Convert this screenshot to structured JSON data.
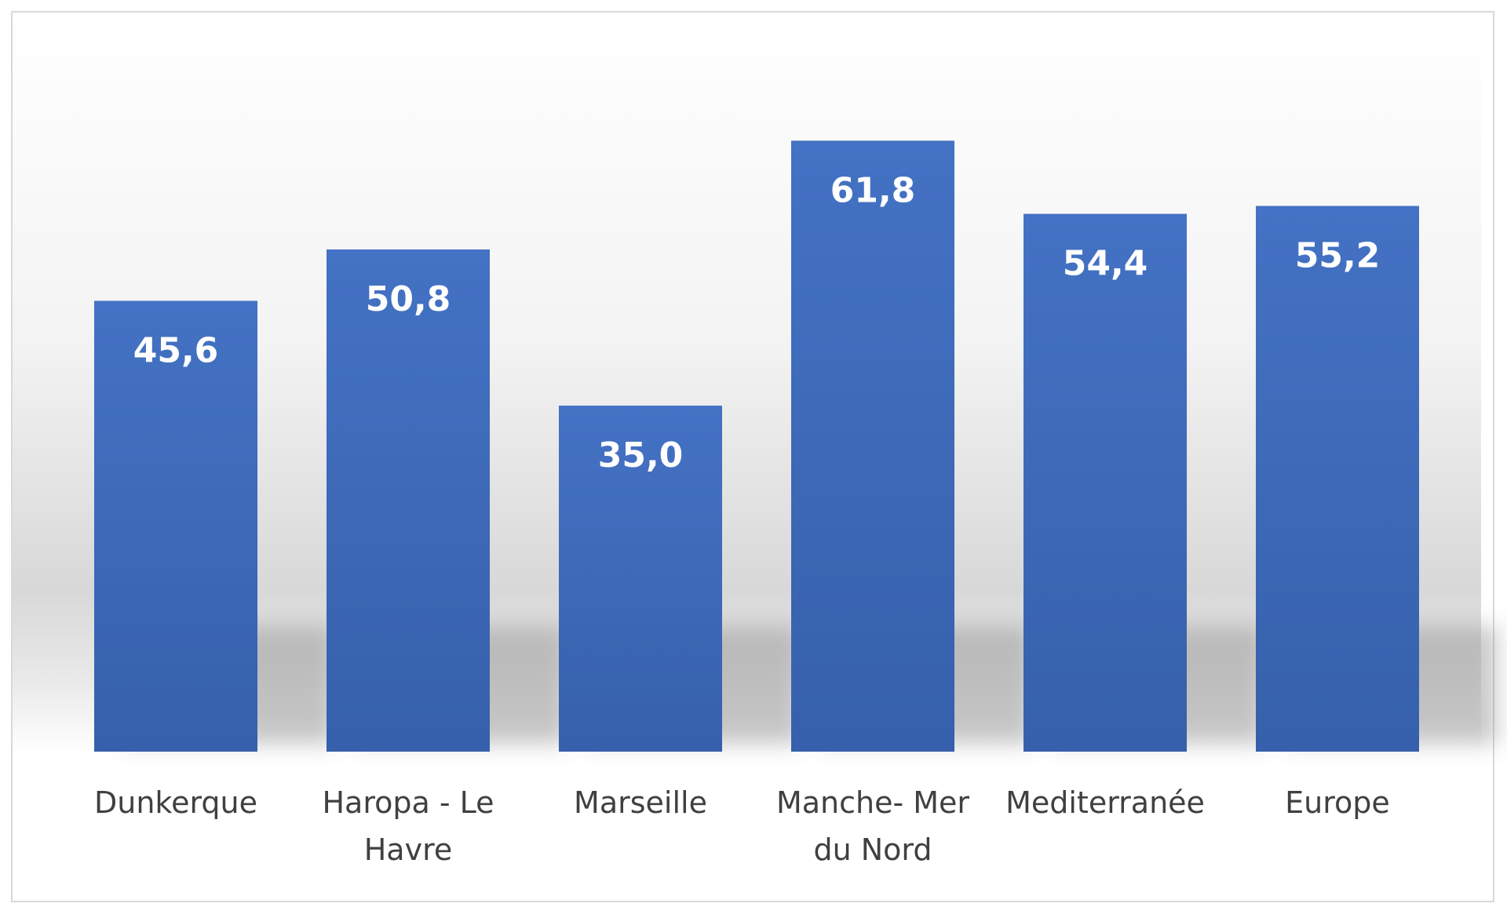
{
  "chart_data": {
    "type": "bar",
    "categories": [
      "Dunkerque",
      "Haropa - Le Havre",
      "Marseille",
      "Manche- Mer du Nord",
      "Mediterranée",
      "Europe"
    ],
    "category_lines": [
      [
        "Dunkerque"
      ],
      [
        "Haropa - Le",
        "Havre"
      ],
      [
        "Marseille"
      ],
      [
        "Manche- Mer",
        "du Nord"
      ],
      [
        "Mediterranée"
      ],
      [
        "Europe"
      ]
    ],
    "values": [
      45.6,
      50.8,
      35.0,
      61.8,
      54.4,
      55.2
    ],
    "data_labels": [
      "45,6",
      "50,8",
      "35,0",
      "61,8",
      "54,4",
      "55,2"
    ],
    "title": "",
    "xlabel": "",
    "ylabel": "",
    "ylim": [
      0,
      80
    ],
    "grid": false,
    "legend": "none",
    "colors": {
      "bar": "#4472c4",
      "bar_dark": "#3660ab",
      "label_text": "#ffffff",
      "category_text": "#404040",
      "frame": "#d9d9d9"
    }
  }
}
